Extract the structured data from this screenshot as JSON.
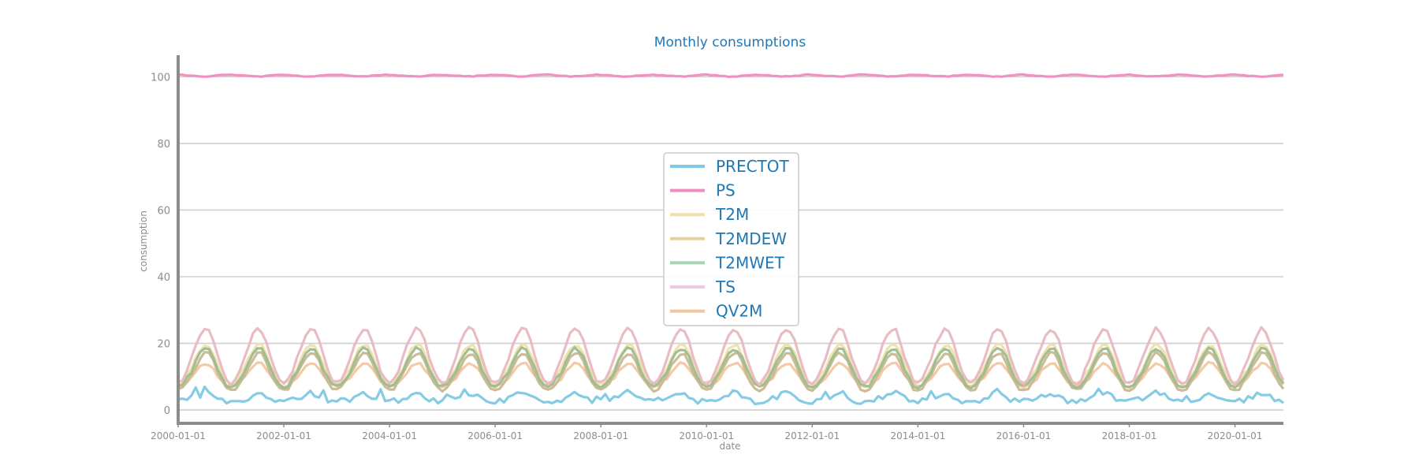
{
  "chart_data": {
    "type": "line",
    "title": "Monthly consumptions",
    "xlabel": "date",
    "ylabel": "consumption",
    "x_start": "2000-01",
    "x_end": "2020-12",
    "xlim": [
      "2000-01-01",
      "2020-12-01"
    ],
    "ylim": [
      -4,
      106
    ],
    "yticks": [
      0,
      20,
      40,
      60,
      80,
      100
    ],
    "xticks": [
      "2000-01-01",
      "2002-01-01",
      "2004-01-01",
      "2006-01-01",
      "2008-01-01",
      "2010-01-01",
      "2012-01-01",
      "2014-01-01",
      "2016-01-01",
      "2018-01-01",
      "2020-01-01"
    ],
    "grid": "horizontal",
    "legend_position": "center",
    "series": [
      {
        "name": "PRECTOT",
        "color": "#7ec8e3",
        "monthly_profile": [
          2.5,
          2.8,
          3.0,
          3.3,
          3.8,
          4.5,
          5.2,
          5.0,
          4.2,
          3.3,
          2.8,
          2.5
        ],
        "noise": 0.9
      },
      {
        "name": "PS",
        "color": "#f08cc0",
        "monthly_profile": [
          100.6,
          100.5,
          100.4,
          100.3,
          100.2,
          100.1,
          100.1,
          100.1,
          100.3,
          100.4,
          100.5,
          100.6
        ],
        "noise": 0.1
      },
      {
        "name": "T2M",
        "color": "#f0e0a8",
        "monthly_profile": [
          8,
          8.5,
          10.5,
          12.5,
          15.5,
          18,
          19.5,
          19.2,
          17,
          13.5,
          10.5,
          8.5
        ],
        "noise": 0.5
      },
      {
        "name": "T2MDEW",
        "color": "#e8d09a",
        "monthly_profile": [
          6,
          6.5,
          8.5,
          10.5,
          13,
          15.5,
          17,
          16.8,
          14.5,
          11,
          8.5,
          6.5
        ],
        "noise": 0.5
      },
      {
        "name": "T2MWET",
        "color": "#a8d4b4",
        "monthly_profile": [
          7,
          7.5,
          9.5,
          11.5,
          14.5,
          17,
          18.3,
          18,
          15.8,
          12.3,
          9.5,
          7.5
        ],
        "noise": 0.5
      },
      {
        "name": "TS",
        "color": "#f0c8e0",
        "monthly_profile": [
          8,
          9,
          12,
          15.5,
          19.5,
          22.5,
          24.3,
          23.8,
          20.5,
          16,
          12,
          9
        ],
        "noise": 0.6
      },
      {
        "name": "QV2M",
        "color": "#f0c8a0",
        "monthly_profile": [
          7,
          7.5,
          8.5,
          9.5,
          11.5,
          13,
          14,
          13.8,
          12.3,
          10.3,
          8.5,
          7.5
        ],
        "noise": 0.4
      }
    ]
  }
}
